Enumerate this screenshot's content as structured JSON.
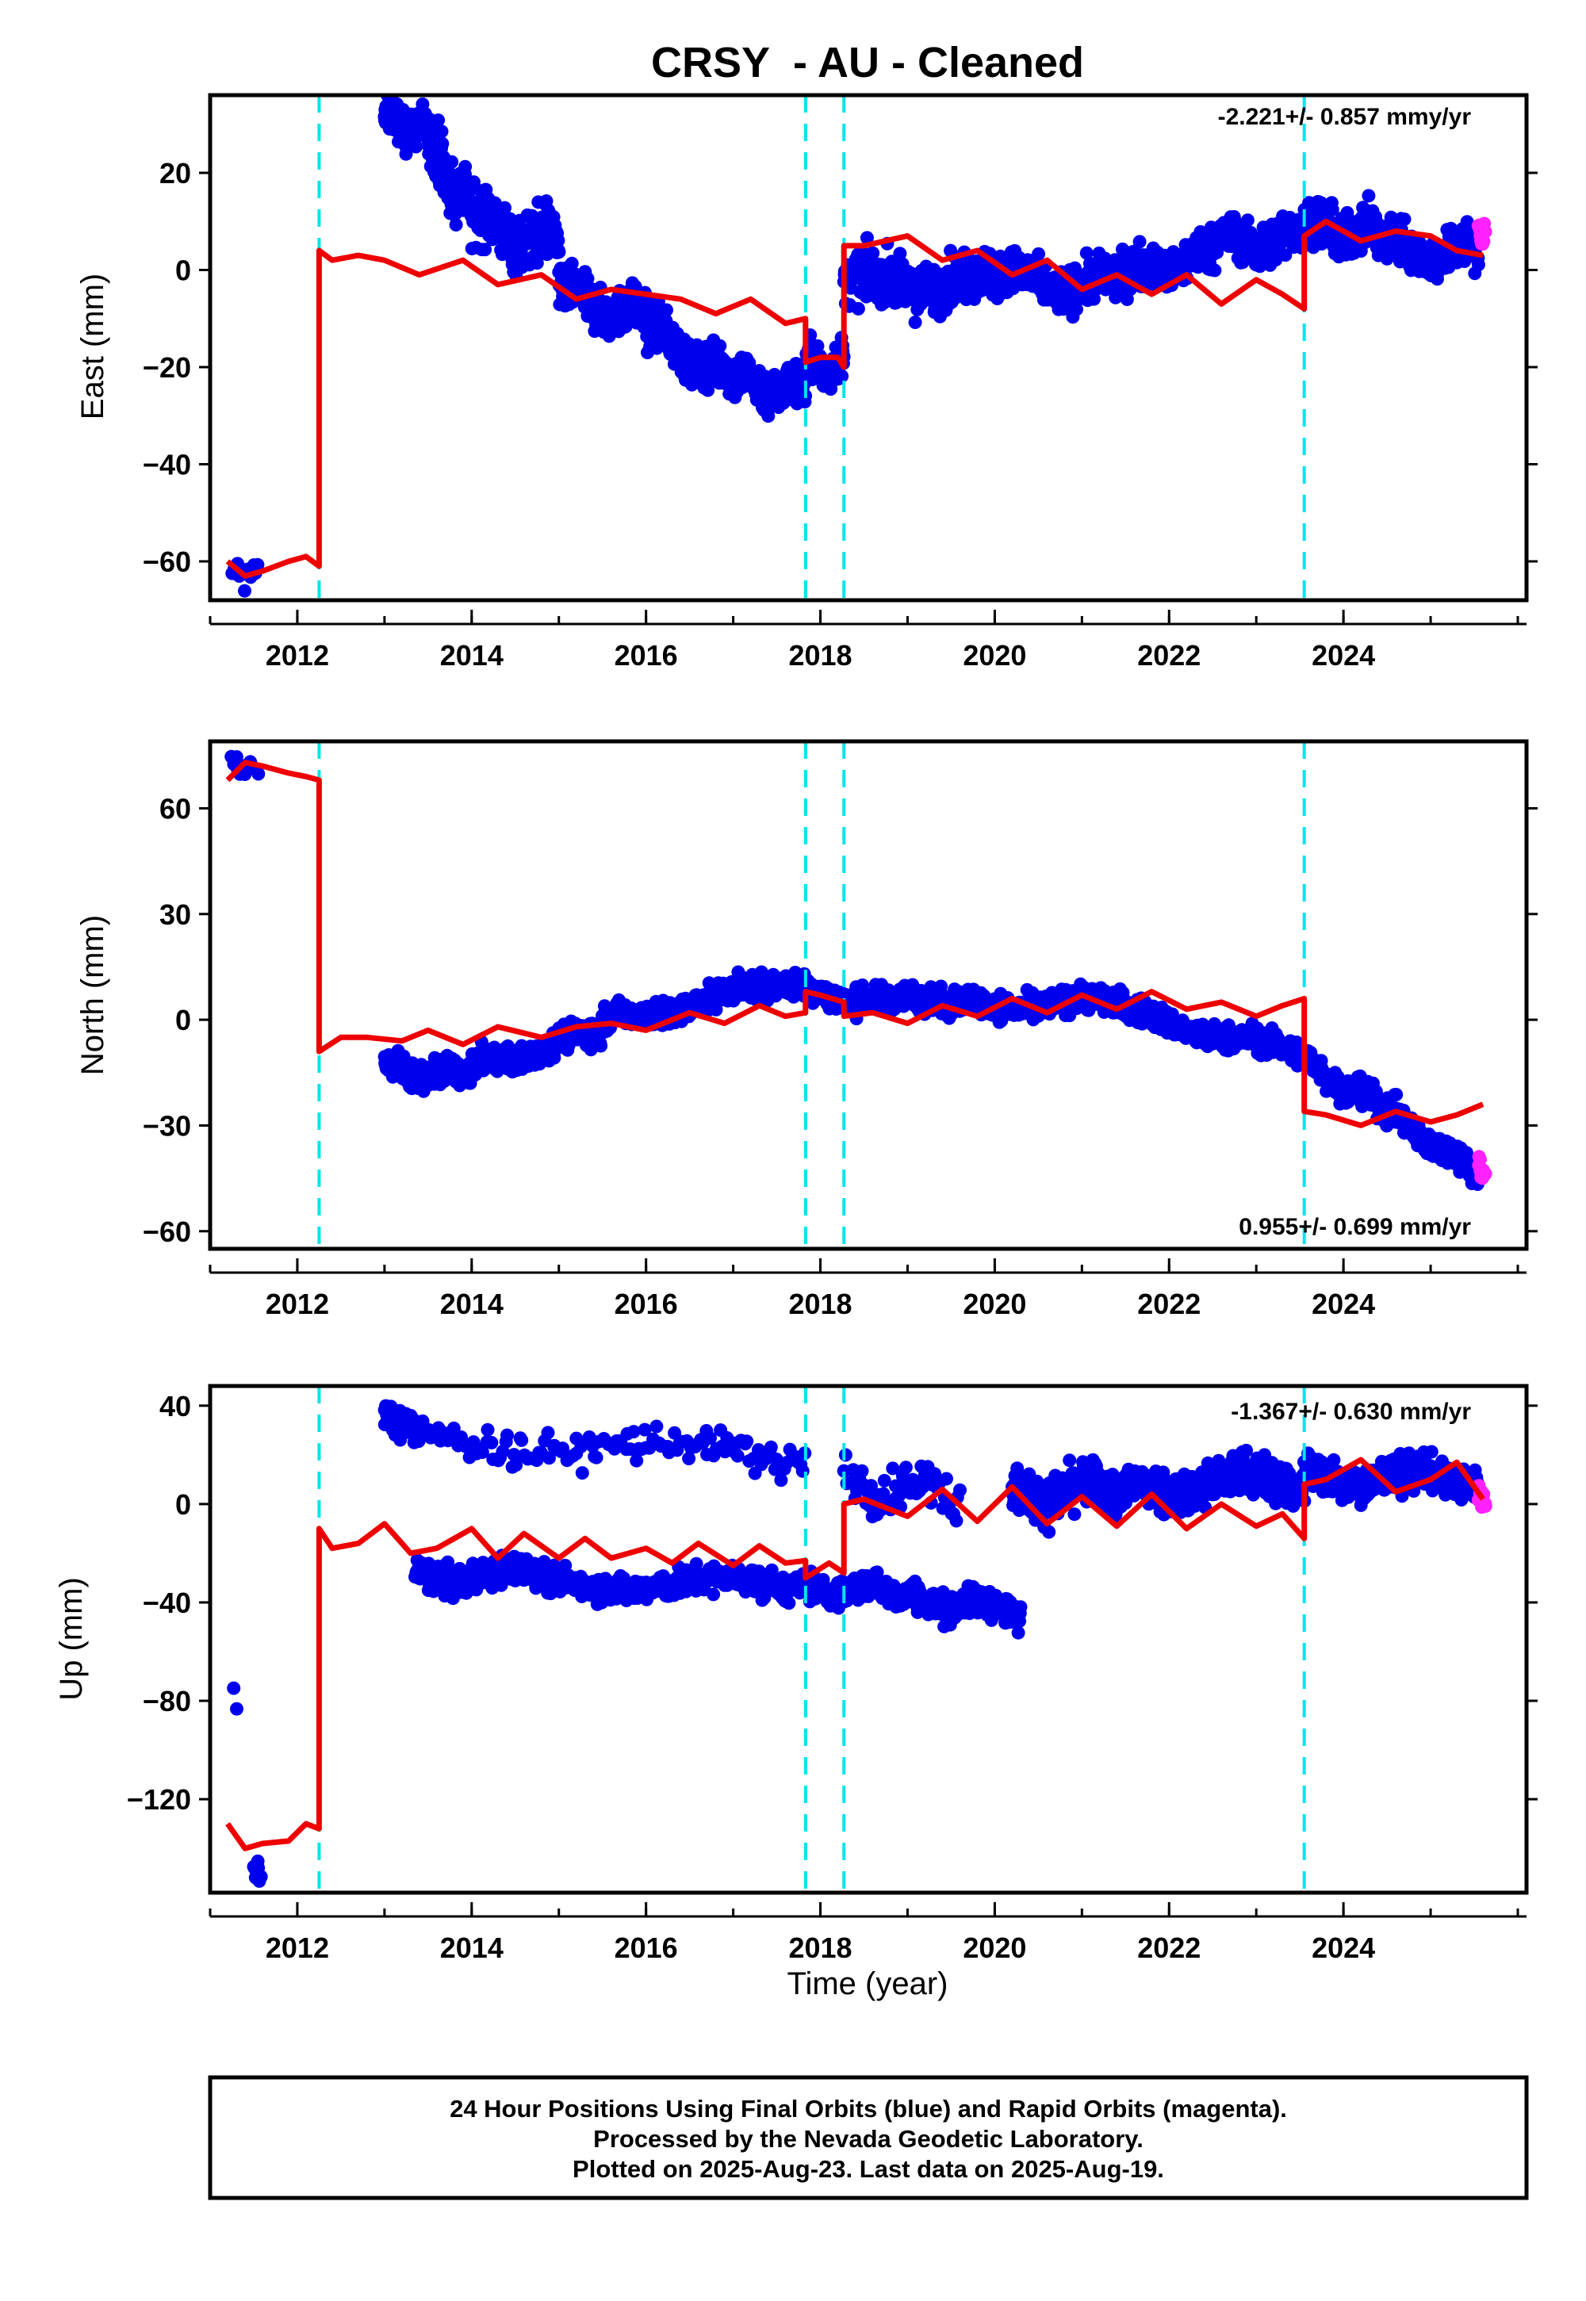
{
  "figure": {
    "title": "CRSY  - AU - Cleaned",
    "footer": [
      "24 Hour Positions Using Final Orbits (blue) and Rapid Orbits (magenta).",
      "Processed by the Nevada Geodetic Laboratory.",
      "Plotted on 2025-Aug-23. Last data on 2025-Aug-19."
    ]
  },
  "colors": {
    "final_orbits": "#0000ee",
    "rapid_orbits": "#ff22ff",
    "model": "#ee0000",
    "steps": "#00e5ee",
    "frame": "#000000"
  },
  "chart_data": [
    {
      "type": "scatter",
      "panel": "east",
      "ylabel": "East (mm)",
      "xlabel": "",
      "xlim": [
        2011.0,
        2026.1
      ],
      "ylim": [
        -68,
        36
      ],
      "xticks": [
        2012,
        2014,
        2016,
        2018,
        2020,
        2022,
        2024
      ],
      "yticks": [
        -60,
        -40,
        -20,
        0,
        20
      ],
      "rate_label": "-2.221+/- 0.857 mmy/yr",
      "rate_position": "top-right",
      "steps": [
        2012.25,
        2017.83,
        2018.27,
        2023.55
      ],
      "series": [
        {
          "kind": "final",
          "clusters": [
            {
              "x": [
                2011.25,
                2011.55
              ],
              "y": [
                -64,
                -61
              ],
              "spread": 2.0,
              "n": 14
            },
            {
              "x": [
                2013.0,
                2013.5
              ],
              "y": [
                31,
                28
              ],
              "spread": 2.5,
              "n": 120
            },
            {
              "x": [
                2013.5,
                2014.0
              ],
              "y": [
                26,
                12
              ],
              "spread": 4.0,
              "n": 150
            },
            {
              "x": [
                2014.0,
                2015.0
              ],
              "y": [
                10,
                5
              ],
              "spread": 4.0,
              "n": 200
            },
            {
              "x": [
                2015.0,
                2016.0
              ],
              "y": [
                -5,
                -10
              ],
              "spread": 3.0,
              "n": 200
            },
            {
              "x": [
                2016.0,
                2017.0
              ],
              "y": [
                -12,
                -23
              ],
              "spread": 3.0,
              "n": 200
            },
            {
              "x": [
                2017.0,
                2017.83
              ],
              "y": [
                -23,
                -25
              ],
              "spread": 3.0,
              "n": 160
            },
            {
              "x": [
                2017.83,
                2018.27
              ],
              "y": [
                -20,
                -20
              ],
              "spread": 3.0,
              "n": 80
            },
            {
              "x": [
                2018.27,
                2020.0
              ],
              "y": [
                -3,
                -2
              ],
              "spread": 3.5,
              "n": 280
            },
            {
              "x": [
                2020.0,
                2021.5
              ],
              "y": [
                -2,
                -3
              ],
              "spread": 3.0,
              "n": 250
            },
            {
              "x": [
                2021.5,
                2022.5
              ],
              "y": [
                -1,
                3
              ],
              "spread": 3.0,
              "n": 180
            },
            {
              "x": [
                2022.5,
                2023.55
              ],
              "y": [
                5,
                7
              ],
              "spread": 3.0,
              "n": 180
            },
            {
              "x": [
                2023.55,
                2024.4
              ],
              "y": [
                9,
                7
              ],
              "spread": 3.0,
              "n": 160
            },
            {
              "x": [
                2024.4,
                2025.55
              ],
              "y": [
                5,
                3
              ],
              "spread": 3.0,
              "n": 200
            }
          ]
        },
        {
          "kind": "rapid",
          "clusters": [
            {
              "x": [
                2025.55,
                2025.63
              ],
              "y": [
                8,
                6
              ],
              "spread": 2.0,
              "n": 12
            }
          ]
        },
        {
          "kind": "model",
          "x": [
            2011.2,
            2011.4,
            2011.6,
            2011.9,
            2012.1,
            2012.25,
            2012.25,
            2012.4,
            2012.7,
            2013.0,
            2013.4,
            2013.9,
            2014.3,
            2014.8,
            2015.2,
            2015.6,
            2016.0,
            2016.4,
            2016.8,
            2017.2,
            2017.6,
            2017.83,
            2017.83,
            2018.0,
            2018.2,
            2018.27,
            2018.27,
            2018.5,
            2019.0,
            2019.4,
            2019.8,
            2020.2,
            2020.6,
            2021.0,
            2021.4,
            2021.8,
            2022.2,
            2022.6,
            2023.0,
            2023.3,
            2023.55,
            2023.55,
            2023.8,
            2024.2,
            2024.6,
            2025.0,
            2025.3,
            2025.6
          ],
          "y": [
            -60,
            -63,
            -62,
            -60,
            -59,
            -61,
            4,
            2,
            3,
            2,
            -1,
            2,
            -3,
            -1,
            -6,
            -4,
            -5,
            -6,
            -9,
            -6,
            -11,
            -10,
            -19,
            -18,
            -18,
            -20,
            5,
            5,
            7,
            2,
            4,
            -1,
            2,
            -4,
            -1,
            -5,
            -1,
            -7,
            -2,
            -5,
            -8,
            7,
            10,
            6,
            8,
            7,
            4,
            3
          ]
        }
      ]
    },
    {
      "type": "scatter",
      "panel": "north",
      "ylabel": "North (mm)",
      "xlabel": "",
      "xlim": [
        2011.0,
        2026.1
      ],
      "ylim": [
        -65,
        79
      ],
      "xticks": [
        2012,
        2014,
        2016,
        2018,
        2020,
        2022,
        2024
      ],
      "yticks": [
        -60,
        -30,
        0,
        30,
        60
      ],
      "rate_label": "0.955+/- 0.699 mm/yr",
      "rate_position": "bottom-right",
      "steps": [
        2012.25,
        2017.83,
        2018.27,
        2023.55
      ],
      "series": [
        {
          "kind": "final",
          "clusters": [
            {
              "x": [
                2011.25,
                2011.55
              ],
              "y": [
                73,
                70
              ],
              "spread": 2.0,
              "n": 14
            },
            {
              "x": [
                2013.0,
                2014.0
              ],
              "y": [
                -14,
                -16
              ],
              "spread": 2.5,
              "n": 200
            },
            {
              "x": [
                2014.0,
                2015.5
              ],
              "y": [
                -14,
                -3
              ],
              "spread": 2.5,
              "n": 250
            },
            {
              "x": [
                2015.5,
                2017.5
              ],
              "y": [
                -1,
                10
              ],
              "spread": 2.5,
              "n": 300
            },
            {
              "x": [
                2017.5,
                2019.5
              ],
              "y": [
                9,
                4
              ],
              "spread": 2.5,
              "n": 300
            },
            {
              "x": [
                2019.5,
                2021.5
              ],
              "y": [
                4,
                5
              ],
              "spread": 2.5,
              "n": 300
            },
            {
              "x": [
                2021.5,
                2023.55
              ],
              "y": [
                2,
                -10
              ],
              "spread": 2.5,
              "n": 300
            },
            {
              "x": [
                2023.55,
                2024.5
              ],
              "y": [
                -12,
                -26
              ],
              "spread": 2.5,
              "n": 180
            },
            {
              "x": [
                2024.5,
                2025.55
              ],
              "y": [
                -26,
                -44
              ],
              "spread": 2.5,
              "n": 180
            }
          ]
        },
        {
          "kind": "rapid",
          "clusters": [
            {
              "x": [
                2025.55,
                2025.63
              ],
              "y": [
                -42,
                -45
              ],
              "spread": 2.0,
              "n": 12
            }
          ]
        },
        {
          "kind": "model",
          "x": [
            2011.2,
            2011.4,
            2011.6,
            2011.9,
            2012.1,
            2012.25,
            2012.25,
            2012.5,
            2012.8,
            2013.2,
            2013.5,
            2013.9,
            2014.3,
            2014.8,
            2015.2,
            2015.6,
            2016.0,
            2016.5,
            2016.9,
            2017.3,
            2017.6,
            2017.83,
            2017.83,
            2018.0,
            2018.27,
            2018.27,
            2018.6,
            2019.0,
            2019.4,
            2019.8,
            2020.2,
            2020.6,
            2021.0,
            2021.4,
            2021.8,
            2022.2,
            2022.6,
            2023.0,
            2023.3,
            2023.55,
            2023.55,
            2023.8,
            2024.2,
            2024.6,
            2025.0,
            2025.3,
            2025.6
          ],
          "y": [
            68,
            73,
            72,
            70,
            69,
            68,
            -9,
            -5,
            -5,
            -6,
            -3,
            -7,
            -2,
            -5,
            -2,
            -1,
            -3,
            2,
            -1,
            4,
            1,
            2,
            8,
            7,
            5,
            1,
            2,
            -1,
            4,
            1,
            6,
            2,
            7,
            3,
            8,
            3,
            5,
            1,
            4,
            6,
            -26,
            -27,
            -30,
            -26,
            -29,
            -27,
            -24
          ]
        }
      ]
    },
    {
      "type": "scatter",
      "panel": "up",
      "ylabel": "Up (mm)",
      "xlabel": "Time (year)",
      "xlim": [
        2011.0,
        2026.1
      ],
      "ylim": [
        -158,
        48
      ],
      "xticks": [
        2012,
        2014,
        2016,
        2018,
        2020,
        2022,
        2024
      ],
      "yticks": [
        -120,
        -80,
        -40,
        0,
        40
      ],
      "rate_label": "-1.367+/- 0.630 mm/yr",
      "rate_position": "top-right",
      "steps": [
        2012.25,
        2017.83,
        2018.27,
        2023.55
      ],
      "series": [
        {
          "kind": "final",
          "clusters": [
            {
              "x": [
                2011.27,
                2011.3
              ],
              "y": [
                -78,
                -78
              ],
              "spread": 3.0,
              "n": 2
            },
            {
              "x": [
                2011.5,
                2011.58
              ],
              "y": [
                -147,
                -150
              ],
              "spread": 3.0,
              "n": 8
            },
            {
              "x": [
                2013.0,
                2013.4
              ],
              "y": [
                36,
                30
              ],
              "spread": 4.0,
              "n": 60
            },
            {
              "x": [
                2013.4,
                2017.83
              ],
              "y": [
                26,
                20
              ],
              "spread": 5.0,
              "n": 140
            },
            {
              "x": [
                2013.35,
                2015.0
              ],
              "y": [
                -30,
                -28
              ],
              "spread": 4.0,
              "n": 260
            },
            {
              "x": [
                2015.0,
                2017.83
              ],
              "y": [
                -33,
                -32
              ],
              "spread": 4.0,
              "n": 300
            },
            {
              "x": [
                2017.83,
                2019.0
              ],
              "y": [
                -34,
                -36
              ],
              "spread": 4.0,
              "n": 140
            },
            {
              "x": [
                2019.0,
                2020.3
              ],
              "y": [
                -38,
                -44
              ],
              "spread": 4.0,
              "n": 150
            },
            {
              "x": [
                2018.27,
                2019.6
              ],
              "y": [
                10,
                4
              ],
              "spread": 6.0,
              "n": 60
            },
            {
              "x": [
                2020.2,
                2021.5
              ],
              "y": [
                4,
                6
              ],
              "spread": 6.0,
              "n": 260
            },
            {
              "x": [
                2021.5,
                2023.55
              ],
              "y": [
                7,
                10
              ],
              "spread": 6.0,
              "n": 320
            },
            {
              "x": [
                2023.55,
                2025.55
              ],
              "y": [
                12,
                10
              ],
              "spread": 5.0,
              "n": 320
            }
          ]
        },
        {
          "kind": "rapid",
          "clusters": [
            {
              "x": [
                2025.55,
                2025.63
              ],
              "y": [
                4,
                2
              ],
              "spread": 3.0,
              "n": 12
            }
          ]
        },
        {
          "kind": "model",
          "x": [
            2011.2,
            2011.4,
            2011.6,
            2011.9,
            2012.1,
            2012.25,
            2012.25,
            2012.4,
            2012.7,
            2013.0,
            2013.3,
            2013.6,
            2014.0,
            2014.3,
            2014.6,
            2015.0,
            2015.3,
            2015.6,
            2016.0,
            2016.3,
            2016.6,
            2017.0,
            2017.3,
            2017.6,
            2017.83,
            2017.83,
            2018.1,
            2018.27,
            2018.27,
            2018.5,
            2019.0,
            2019.4,
            2019.8,
            2020.2,
            2020.6,
            2021.0,
            2021.4,
            2021.8,
            2022.2,
            2022.6,
            2023.0,
            2023.3,
            2023.55,
            2023.55,
            2023.8,
            2024.2,
            2024.6,
            2025.0,
            2025.3,
            2025.6
          ],
          "y": [
            -130,
            -140,
            -138,
            -137,
            -130,
            -132,
            -10,
            -18,
            -16,
            -8,
            -20,
            -18,
            -10,
            -22,
            -12,
            -22,
            -14,
            -22,
            -18,
            -24,
            -16,
            -25,
            -17,
            -24,
            -23,
            -30,
            -24,
            -28,
            0,
            2,
            -5,
            6,
            -7,
            7,
            -8,
            3,
            -9,
            4,
            -10,
            0,
            -9,
            -4,
            -14,
            8,
            10,
            18,
            5,
            10,
            17,
            2
          ]
        }
      ]
    }
  ]
}
